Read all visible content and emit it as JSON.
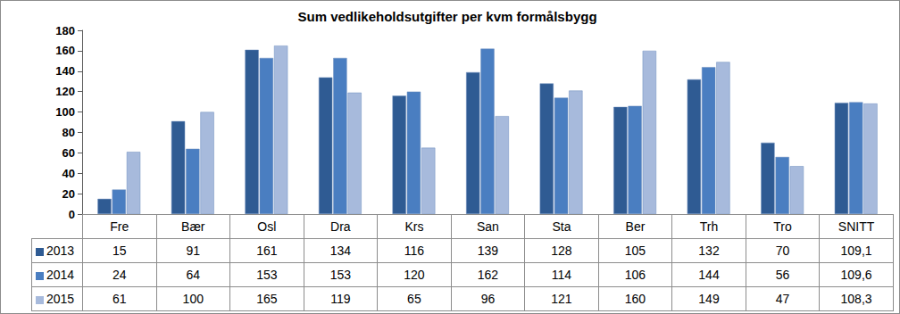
{
  "chart_data": {
    "type": "bar",
    "title": "Sum vedlikeholdsutgifter per kvm formålsbygg",
    "categories": [
      "Fre",
      "Bær",
      "Osl",
      "Dra",
      "Krs",
      "San",
      "Sta",
      "Ber",
      "Trh",
      "Tro",
      "SNITT"
    ],
    "series": [
      {
        "name": "2013",
        "color": "#2f5b93",
        "values": [
          15,
          91,
          161,
          134,
          116,
          139,
          128,
          105,
          132,
          70,
          109.1
        ],
        "value_labels": [
          "15",
          "91",
          "161",
          "134",
          "116",
          "139",
          "128",
          "105",
          "132",
          "70",
          "109,1"
        ]
      },
      {
        "name": "2014",
        "color": "#4a7ec1",
        "values": [
          24,
          64,
          153,
          153,
          120,
          162,
          114,
          106,
          144,
          56,
          109.6
        ],
        "value_labels": [
          "24",
          "64",
          "153",
          "153",
          "120",
          "162",
          "114",
          "106",
          "144",
          "56",
          "109,6"
        ]
      },
      {
        "name": "2015",
        "color": "#a7badc",
        "values": [
          61,
          100,
          165,
          119,
          65,
          96,
          121,
          160,
          149,
          47,
          108.3
        ],
        "value_labels": [
          "61",
          "100",
          "165",
          "119",
          "65",
          "96",
          "121",
          "160",
          "149",
          "47",
          "108,3"
        ]
      }
    ],
    "ylim": [
      0,
      180
    ],
    "yticks": [
      0,
      20,
      40,
      60,
      80,
      100,
      120,
      140,
      160,
      180
    ],
    "grid": false
  }
}
